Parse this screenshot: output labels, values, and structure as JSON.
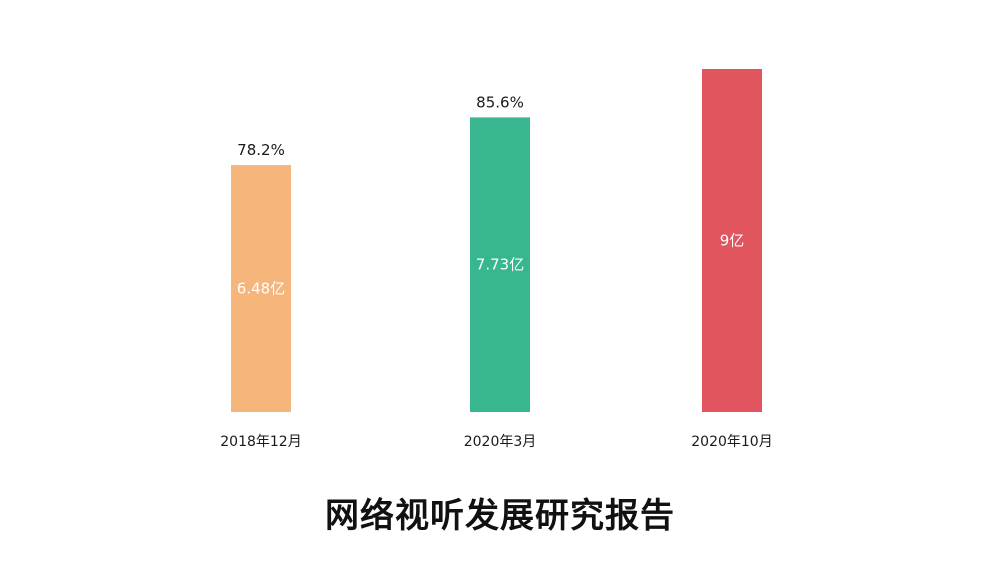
{
  "chart_data": {
    "type": "bar",
    "title": "网络视听发展研究报告",
    "xlabel": "",
    "ylabel": "",
    "categories": [
      "2018年12月",
      "2020年3月",
      "2020年10月"
    ],
    "series": [
      {
        "values": [
          6.48,
          7.73,
          9
        ],
        "value_labels": [
          "6.48亿",
          "7.73亿",
          "9亿"
        ]
      }
    ],
    "rate_labels": [
      "78.2%",
      "85.6%",
      ""
    ],
    "colors": [
      "#f6b57b",
      "#37b690",
      "#e0555e"
    ],
    "ylim": [
      0,
      9
    ],
    "grid": false,
    "legend": "none"
  }
}
